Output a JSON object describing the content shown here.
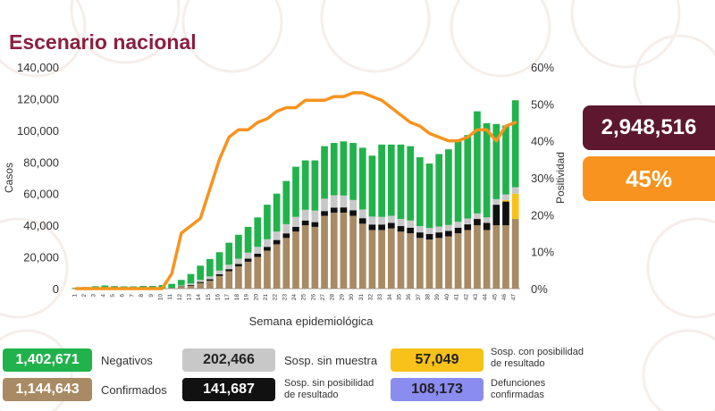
{
  "title": "Escenario nacional",
  "totals": {
    "total": "2,948,516",
    "positivity": "45%"
  },
  "legend": [
    {
      "key": "negativos",
      "value": "1,402,671",
      "label": "Negativos",
      "color": "#22b24c",
      "text_color": "#ffffff"
    },
    {
      "key": "confirmados",
      "value": "1,144,643",
      "label": "Confirmados",
      "color": "#a88a64",
      "text_color": "#ffffff"
    },
    {
      "key": "sosp_sin_muestra",
      "value": "202,466",
      "label": "Sosp. sin muestra",
      "color": "#c8c8c8",
      "text_color": "#222222"
    },
    {
      "key": "sosp_sin_posibilidad",
      "value": "141,687",
      "label": "Sosp. sin posibilidad de resultado",
      "label_line1": "Sosp. sin posibilidad",
      "label_line2": "de resultado",
      "color": "#111111",
      "text_color": "#ffffff"
    },
    {
      "key": "sosp_con_posibilidad",
      "value": "57,049",
      "label": "Sosp. con posibilidad de resultado",
      "label_line1": "Sosp. con posibilidad",
      "label_line2": "de resultado",
      "color": "#f9c21a",
      "text_color": "#222222"
    },
    {
      "key": "defunciones",
      "value": "108,173",
      "label": "Defunciones confirmadas",
      "label_line1": "Defunciones",
      "label_line2": "confirmadas",
      "color": "#8b8cf0",
      "text_color": "#222222"
    }
  ],
  "chart_data": {
    "type": "bar",
    "stacked": true,
    "xlabel": "Semana epidemiológica",
    "ylabel": "Casos",
    "y2label": "Positividad",
    "ylim": [
      0,
      140000
    ],
    "y2lim": [
      0,
      60
    ],
    "yticks": [
      "0",
      "20,000",
      "40,000",
      "60,000",
      "80,000",
      "100,000",
      "120,000",
      "140,000"
    ],
    "y2ticks": [
      "0%",
      "10%",
      "20%",
      "30%",
      "40%",
      "50%",
      "60%"
    ],
    "categories": [
      "1",
      "2",
      "3",
      "4",
      "5",
      "6",
      "7",
      "8",
      "9",
      "10",
      "11",
      "12",
      "13",
      "14",
      "15",
      "16",
      "17",
      "18",
      "19",
      "20",
      "21",
      "22",
      "23",
      "24",
      "25",
      "26",
      "27",
      "28",
      "29",
      "30",
      "31",
      "32",
      "33",
      "34",
      "35",
      "36",
      "37",
      "38",
      "39",
      "40",
      "41",
      "42",
      "43",
      "44",
      "45",
      "46",
      "47"
    ],
    "series": [
      {
        "name": "Confirmados",
        "color": "#a88a64",
        "values": [
          0,
          0,
          0,
          0,
          0,
          0,
          0,
          0,
          0,
          0,
          200,
          1200,
          1800,
          3500,
          5000,
          8000,
          11000,
          14000,
          17000,
          20000,
          24000,
          28000,
          32000,
          36000,
          40000,
          39000,
          46000,
          48000,
          48000,
          46000,
          41000,
          37000,
          37000,
          38000,
          36000,
          35000,
          32000,
          31000,
          32000,
          33000,
          35000,
          37000,
          40000,
          37000,
          40000,
          40000,
          44000
        ]
      },
      {
        "name": "Sosp. sin posibilidad de resultado",
        "color": "#111111",
        "values": [
          0,
          0,
          0,
          0,
          0,
          0,
          0,
          0,
          0,
          0,
          100,
          300,
          500,
          700,
          900,
          1100,
          1300,
          1600,
          1900,
          2100,
          2400,
          2700,
          2900,
          3000,
          3000,
          3000,
          3000,
          3200,
          3300,
          3500,
          3500,
          3500,
          3500,
          3500,
          3500,
          3500,
          3500,
          3500,
          3500,
          3500,
          3500,
          3600,
          4000,
          4500,
          13000,
          15000,
          0
        ]
      },
      {
        "name": "Sosp. con posibilidad de resultado",
        "color": "#f9c21a",
        "values": [
          0,
          0,
          0,
          0,
          0,
          0,
          0,
          0,
          0,
          0,
          0,
          0,
          0,
          0,
          0,
          0,
          0,
          0,
          0,
          0,
          0,
          0,
          0,
          0,
          0,
          0,
          0,
          0,
          0,
          0,
          0,
          0,
          0,
          0,
          0,
          0,
          0,
          0,
          0,
          0,
          0,
          0,
          0,
          0,
          0,
          1000,
          16000
        ]
      },
      {
        "name": "Sosp. sin muestra",
        "color": "#c8c8c8",
        "values": [
          0,
          0,
          0,
          0,
          0,
          0,
          0,
          0,
          0,
          0,
          200,
          500,
          900,
          1300,
          1800,
          2300,
          2800,
          3300,
          3800,
          4300,
          4800,
          5300,
          5800,
          6300,
          6800,
          7300,
          7800,
          7800,
          7500,
          6500,
          5500,
          5000,
          4800,
          4500,
          4500,
          4500,
          4000,
          3800,
          3700,
          3700,
          3700,
          3700,
          3500,
          3500,
          3500,
          3500,
          4000
        ]
      },
      {
        "name": "Negativos",
        "color": "#22b24c",
        "values": [
          500,
          1000,
          1500,
          2000,
          1600,
          1400,
          1400,
          1700,
          1700,
          2200,
          2500,
          3500,
          6000,
          9000,
          11000,
          11600,
          13900,
          15100,
          16300,
          18600,
          21800,
          24000,
          27300,
          31700,
          31200,
          31700,
          33200,
          33000,
          34200,
          36000,
          39000,
          38500,
          45700,
          45000,
          47000,
          47000,
          43500,
          40700,
          45800,
          47800,
          50800,
          52700,
          64500,
          59500,
          47500,
          43500,
          55000
        ]
      }
    ],
    "line": {
      "name": "Positividad",
      "color": "#f7931e",
      "values": [
        0,
        0,
        0,
        0,
        0,
        0,
        0,
        0,
        0,
        0,
        4,
        15,
        17,
        19,
        27,
        35,
        41,
        43,
        43,
        45,
        46,
        48,
        49,
        49,
        51,
        51,
        51,
        52,
        52,
        53,
        53,
        52,
        51,
        49,
        47,
        45,
        44,
        42,
        41,
        40,
        40,
        41,
        43,
        43,
        40,
        44,
        45
      ]
    }
  }
}
